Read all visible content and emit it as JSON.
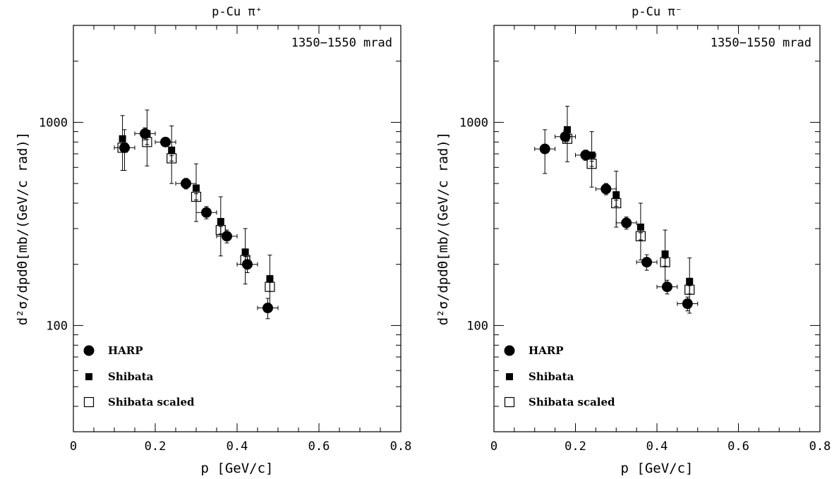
{
  "chart_data": [
    {
      "type": "scatter",
      "title": "p-Cu π⁺",
      "annotation": "1350−1550 mrad",
      "xlabel": "p [GeV/c]",
      "ylabel": "d²σ/dpdΘ[mb/(GeV/c rad)]",
      "xlim": [
        0,
        0.8
      ],
      "ylim": [
        30,
        3000
      ],
      "yscale": "log",
      "xticks": [
        "0",
        "0.2",
        "0.4",
        "0.6",
        "0.8"
      ],
      "yticks": [
        "100",
        "1000"
      ],
      "legend_position": "bottom-left",
      "series": [
        {
          "name": "HARP",
          "marker": "filled-circle",
          "points": [
            {
              "x": 0.125,
              "y": 750,
              "xerr": 0.025,
              "yerr": 170
            },
            {
              "x": 0.175,
              "y": 880,
              "xerr": 0.025,
              "yerr": 60
            },
            {
              "x": 0.225,
              "y": 800,
              "xerr": 0.025,
              "yerr": 40
            },
            {
              "x": 0.275,
              "y": 500,
              "xerr": 0.025,
              "yerr": 30
            },
            {
              "x": 0.325,
              "y": 360,
              "xerr": 0.025,
              "yerr": 25
            },
            {
              "x": 0.375,
              "y": 275,
              "xerr": 0.025,
              "yerr": 20
            },
            {
              "x": 0.425,
              "y": 200,
              "xerr": 0.025,
              "yerr": 18
            },
            {
              "x": 0.475,
              "y": 122,
              "xerr": 0.025,
              "yerr": 14
            }
          ]
        },
        {
          "name": "Shibata",
          "marker": "filled-square",
          "points": [
            {
              "x": 0.12,
              "y": 830,
              "yerr": 250
            },
            {
              "x": 0.18,
              "y": 880,
              "yerr": 270
            },
            {
              "x": 0.24,
              "y": 730,
              "yerr": 230
            },
            {
              "x": 0.3,
              "y": 475,
              "yerr": 150
            },
            {
              "x": 0.36,
              "y": 325,
              "yerr": 105
            },
            {
              "x": 0.42,
              "y": 230,
              "yerr": 70
            },
            {
              "x": 0.48,
              "y": 170,
              "yerr": 52
            }
          ]
        },
        {
          "name": "Shibata scaled",
          "marker": "open-square",
          "points": [
            {
              "x": 0.12,
              "y": 750,
              "yerr": 20
            },
            {
              "x": 0.18,
              "y": 800,
              "yerr": 22
            },
            {
              "x": 0.24,
              "y": 665,
              "yerr": 20
            },
            {
              "x": 0.3,
              "y": 430,
              "yerr": 15
            },
            {
              "x": 0.36,
              "y": 295,
              "yerr": 12
            },
            {
              "x": 0.42,
              "y": 210,
              "yerr": 9
            },
            {
              "x": 0.48,
              "y": 155,
              "yerr": 8
            }
          ]
        }
      ]
    },
    {
      "type": "scatter",
      "title": "p-Cu π⁻",
      "annotation": "1350−1550 mrad",
      "xlabel": "p [GeV/c]",
      "ylabel": "d²σ/dpdΘ[mb/(GeV/c rad)]",
      "xlim": [
        0,
        0.8
      ],
      "ylim": [
        30,
        3000
      ],
      "yscale": "log",
      "xticks": [
        "0",
        "0.2",
        "0.4",
        "0.6",
        "0.8"
      ],
      "yticks": [
        "100",
        "1000"
      ],
      "legend_position": "bottom-left",
      "series": [
        {
          "name": "HARP",
          "marker": "filled-circle",
          "points": [
            {
              "x": 0.125,
              "y": 740,
              "xerr": 0.025,
              "yerr": 180
            },
            {
              "x": 0.175,
              "y": 850,
              "xerr": 0.025,
              "yerr": 60
            },
            {
              "x": 0.225,
              "y": 690,
              "xerr": 0.025,
              "yerr": 40
            },
            {
              "x": 0.275,
              "y": 470,
              "xerr": 0.025,
              "yerr": 30
            },
            {
              "x": 0.325,
              "y": 320,
              "xerr": 0.025,
              "yerr": 22
            },
            {
              "x": 0.375,
              "y": 205,
              "xerr": 0.025,
              "yerr": 18
            },
            {
              "x": 0.425,
              "y": 155,
              "xerr": 0.025,
              "yerr": 12
            },
            {
              "x": 0.475,
              "y": 128,
              "xerr": 0.025,
              "yerr": 10
            }
          ]
        },
        {
          "name": "Shibata",
          "marker": "filled-square",
          "points": [
            {
              "x": 0.18,
              "y": 920,
              "yerr": 280
            },
            {
              "x": 0.24,
              "y": 690,
              "yerr": 210
            },
            {
              "x": 0.3,
              "y": 440,
              "yerr": 135
            },
            {
              "x": 0.36,
              "y": 305,
              "yerr": 95
            },
            {
              "x": 0.42,
              "y": 225,
              "yerr": 70
            },
            {
              "x": 0.48,
              "y": 165,
              "yerr": 50
            }
          ]
        },
        {
          "name": "Shibata scaled",
          "marker": "open-square",
          "points": [
            {
              "x": 0.18,
              "y": 830,
              "yerr": 22
            },
            {
              "x": 0.24,
              "y": 625,
              "yerr": 18
            },
            {
              "x": 0.3,
              "y": 400,
              "yerr": 14
            },
            {
              "x": 0.36,
              "y": 275,
              "yerr": 11
            },
            {
              "x": 0.42,
              "y": 205,
              "yerr": 9
            },
            {
              "x": 0.48,
              "y": 150,
              "yerr": 7
            }
          ]
        }
      ]
    }
  ]
}
